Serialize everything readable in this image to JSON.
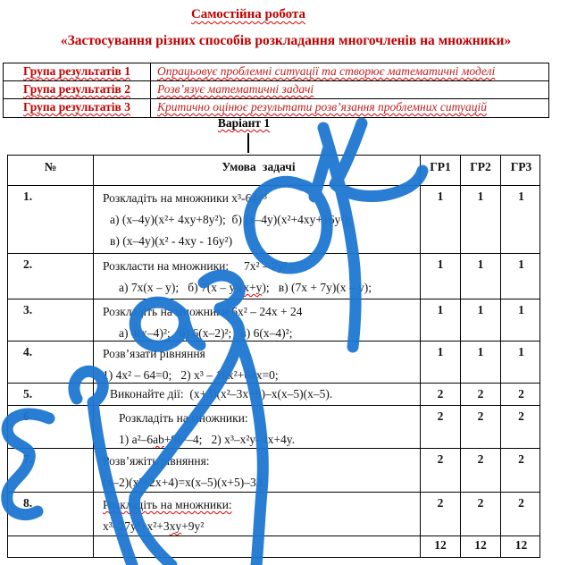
{
  "title": "Самостійна робота",
  "subtitle": "«Застосування різних способів розкладання многочленів на множники»",
  "groups": [
    {
      "label": "Група результатів 1",
      "desc": "Опрацьовує проблемні ситуації та створює математичні моделі"
    },
    {
      "label": "Група результатів 2",
      "desc": "Розв’язує математичні задачі"
    },
    {
      "label": "Група результатів 3",
      "desc": "Критично оцінює результати розв’язання проблемних ситуацій"
    }
  ],
  "variant": "Варіант 1",
  "main_table": {
    "headers": {
      "num": "№",
      "task": "Умова задачі",
      "gr1": "ГР1",
      "gr2": "ГР2",
      "gr3": "ГР3"
    },
    "rows": [
      {
        "num": "1.",
        "gr": [
          "1",
          "1",
          "1"
        ],
        "lines": [
          {
            "ind": 0,
            "segs": [
              {
                "t": "Розкладіть на множники x³-64y³"
              }
            ]
          },
          {
            "ind": 1,
            "segs": [
              {
                "t": "а) (x–4y)(x²+ 4xy+8y²);  б) (x–4y)(x²+4xy+16y²);"
              }
            ]
          },
          {
            "ind": 1,
            "segs": [
              {
                "t": "в) (x–4y)(x² - 4xy - 16y²)"
              }
            ]
          }
        ]
      },
      {
        "num": "2.",
        "gr": [
          "1",
          "1",
          "1"
        ],
        "lines": [
          {
            "ind": 0,
            "segs": [
              {
                "t": "Розкласти на множники:     7x² – 7y² ."
              }
            ]
          },
          {
            "ind": 2,
            "segs": [
              {
                "t": "а) 7x(x – y);   б) 7(x – y)("
              },
              {
                "t": "x+y",
                "sq": true
              },
              {
                "t": ");   в) (7x + 7y)(x – y);"
              }
            ]
          }
        ]
      },
      {
        "num": "3.",
        "gr": [
          "1",
          "1",
          "1"
        ],
        "lines": [
          {
            "ind": 0,
            "segs": [
              {
                "t": "Розкладіть на множники 6x² – 24x + 24"
              }
            ]
          },
          {
            "ind": 2,
            "segs": [
              {
                "t": "а) 4(x–4)²;   б) 6(x–2)²;   в) 6(x–4)²;"
              }
            ]
          }
        ]
      },
      {
        "num": "4.",
        "gr": [
          "1",
          "1",
          "1"
        ],
        "lines": [
          {
            "ind": 0,
            "segs": [
              {
                "t": "Розв’язати рівняння"
              }
            ]
          },
          {
            "ind": 0,
            "segs": [
              {
                "t": "1) 4x² – 64=0;   2) x³ – 16x²+64x=0;"
              }
            ]
          }
        ]
      },
      {
        "num": "5.",
        "gr": [
          "2",
          "2",
          "2"
        ],
        "lines": [
          {
            "ind": 1,
            "segs": [
              {
                "t": "Виконайте дії:  (x+3)(x²–3x+9)–x(x–5)(x–5)."
              }
            ]
          }
        ]
      },
      {
        "num": "6",
        "gr": [
          "2",
          "2",
          "2"
        ],
        "lines": [
          {
            "ind": 2,
            "segs": [
              {
                "t": "Розкладіть на множники:"
              }
            ]
          },
          {
            "ind": 2,
            "segs": [
              {
                "t": "1) a²–6"
              },
              {
                "t": "ab",
                "sq": true
              },
              {
                "t": "+9b²–4;   2) x³–x²y–4x+4y."
              }
            ]
          }
        ]
      },
      {
        "num": "7.",
        "gr": [
          "2",
          "2",
          "2"
        ],
        "lines": [
          {
            "ind": 0,
            "segs": [
              {
                "t": "Розв’яжіть рівняння:"
              }
            ]
          },
          {
            "ind": 0,
            "segs": [
              {
                "t": "(x–2)(x²+2x+4)=x(x–5)(x+5)–33."
              }
            ]
          }
        ]
      },
      {
        "num": "8.",
        "gr": [
          "2",
          "2",
          "2"
        ],
        "lines": [
          {
            "ind": 0,
            "segs": [
              {
                "t": "Розкладіть на множники:",
                "sq": true
              }
            ]
          },
          {
            "ind": 0,
            "segs": [
              {
                "t": "x³–27y³+x²+3"
              },
              {
                "t": "xy",
                "sq": true
              },
              {
                "t": "+9y²"
              }
            ]
          }
        ]
      }
    ],
    "total": {
      "gr": [
        "12",
        "12",
        "12"
      ]
    }
  },
  "watermark": {
    "label": "Зразок",
    "color": "#1e78d2"
  }
}
